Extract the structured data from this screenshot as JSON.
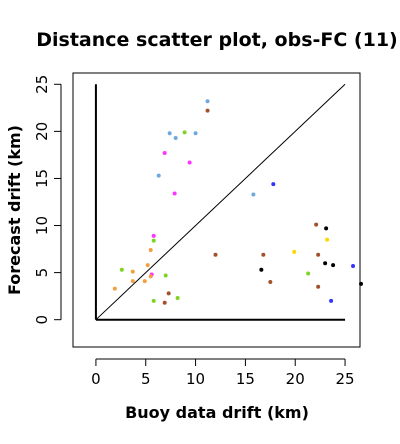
{
  "chart_data": {
    "type": "scatter",
    "title": "Distance scatter plot, obs-FC (11)",
    "xlabel": "Buoy data drift (km)",
    "ylabel": "Forecast drift (km)",
    "xlim": [
      -2.3,
      26.5
    ],
    "ylim": [
      -2.9,
      26.2
    ],
    "xticks": [
      0,
      5,
      10,
      15,
      20,
      25
    ],
    "yticks": [
      0,
      5,
      10,
      15,
      20,
      25
    ],
    "reference_lines": [
      {
        "type": "identity",
        "from": [
          0,
          0
        ],
        "to": [
          25,
          25
        ],
        "color": "#000000"
      },
      {
        "type": "vertical",
        "from": [
          0,
          0
        ],
        "to": [
          0,
          25
        ],
        "color": "#000000"
      },
      {
        "type": "horizontal",
        "from": [
          0,
          0
        ],
        "to": [
          25,
          0
        ],
        "color": "#000000"
      }
    ],
    "points": [
      {
        "x": 11.2,
        "y": 23.2,
        "color": "#6fa8dc"
      },
      {
        "x": 11.2,
        "y": 22.2,
        "color": "#a0522d"
      },
      {
        "x": 7.4,
        "y": 19.8,
        "color": "#6fa8dc"
      },
      {
        "x": 8.9,
        "y": 19.9,
        "color": "#7fd321"
      },
      {
        "x": 10.0,
        "y": 19.8,
        "color": "#6fa8dc"
      },
      {
        "x": 8.0,
        "y": 19.3,
        "color": "#6fa8dc"
      },
      {
        "x": 6.9,
        "y": 17.7,
        "color": "#ff33ff"
      },
      {
        "x": 9.4,
        "y": 16.7,
        "color": "#ff33ff"
      },
      {
        "x": 6.3,
        "y": 15.3,
        "color": "#6fa8dc"
      },
      {
        "x": 7.9,
        "y": 13.4,
        "color": "#ff33ff"
      },
      {
        "x": 17.8,
        "y": 14.4,
        "color": "#3333ff"
      },
      {
        "x": 15.8,
        "y": 13.3,
        "color": "#6fa8dc"
      },
      {
        "x": 22.1,
        "y": 10.1,
        "color": "#a0522d"
      },
      {
        "x": 23.1,
        "y": 9.7,
        "color": "#000000"
      },
      {
        "x": 5.8,
        "y": 8.9,
        "color": "#ff33ff"
      },
      {
        "x": 5.8,
        "y": 8.4,
        "color": "#7fd321"
      },
      {
        "x": 23.2,
        "y": 8.5,
        "color": "#ffd700"
      },
      {
        "x": 5.5,
        "y": 7.4,
        "color": "#f4a040"
      },
      {
        "x": 12.0,
        "y": 6.9,
        "color": "#a0522d"
      },
      {
        "x": 16.8,
        "y": 6.9,
        "color": "#a0522d"
      },
      {
        "x": 19.9,
        "y": 7.2,
        "color": "#ffd700"
      },
      {
        "x": 22.3,
        "y": 6.9,
        "color": "#a0522d"
      },
      {
        "x": 5.2,
        "y": 5.8,
        "color": "#f4a040"
      },
      {
        "x": 23.0,
        "y": 6.0,
        "color": "#000000"
      },
      {
        "x": 23.8,
        "y": 5.8,
        "color": "#000000"
      },
      {
        "x": 2.6,
        "y": 5.3,
        "color": "#7fd321"
      },
      {
        "x": 3.7,
        "y": 5.1,
        "color": "#f4a040"
      },
      {
        "x": 16.6,
        "y": 5.3,
        "color": "#000000"
      },
      {
        "x": 21.3,
        "y": 4.9,
        "color": "#7fd321"
      },
      {
        "x": 5.6,
        "y": 4.8,
        "color": "#ff33ff"
      },
      {
        "x": 5.5,
        "y": 4.6,
        "color": "#f4a040"
      },
      {
        "x": 7.0,
        "y": 4.7,
        "color": "#7fd321"
      },
      {
        "x": 3.7,
        "y": 4.1,
        "color": "#f4a040"
      },
      {
        "x": 4.9,
        "y": 4.1,
        "color": "#f4a040"
      },
      {
        "x": 17.5,
        "y": 4.0,
        "color": "#a0522d"
      },
      {
        "x": 26.6,
        "y": 3.8,
        "color": "#000000"
      },
      {
        "x": 1.9,
        "y": 3.3,
        "color": "#f4a040"
      },
      {
        "x": 22.3,
        "y": 3.5,
        "color": "#a0522d"
      },
      {
        "x": 7.3,
        "y": 2.8,
        "color": "#a0522d"
      },
      {
        "x": 8.2,
        "y": 2.3,
        "color": "#7fd321"
      },
      {
        "x": 5.8,
        "y": 2.0,
        "color": "#7fd321"
      },
      {
        "x": 6.9,
        "y": 1.8,
        "color": "#a0522d"
      },
      {
        "x": 23.6,
        "y": 2.0,
        "color": "#3333ff"
      },
      {
        "x": 25.8,
        "y": 5.7,
        "color": "#3333ff"
      }
    ]
  }
}
